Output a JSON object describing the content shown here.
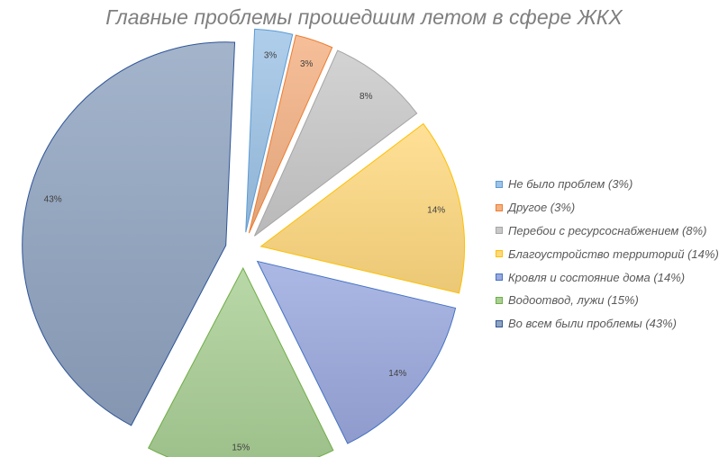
{
  "chart_data": {
    "type": "pie",
    "title": "Главные проблемы прошедшим летом в сфере ЖКХ",
    "legend_position": "right",
    "slices": [
      {
        "name": "Не было проблем",
        "value": 3,
        "label": "3%",
        "legend": "Не было проблем (3%)",
        "color": "#9dc3e6",
        "stroke": "#5b9bd5"
      },
      {
        "name": "Другое",
        "value": 3,
        "label": "3%",
        "legend": "Другое (3%)",
        "color": "#f4b183",
        "stroke": "#ed7d31"
      },
      {
        "name": "Перебои с ресурсоснабжением",
        "value": 8,
        "label": "8%",
        "legend": "Перебои с ресурсоснабжением (8%)",
        "color": "#c9c9c9",
        "stroke": "#a5a5a5"
      },
      {
        "name": "Благоустройство территорий",
        "value": 14,
        "label": "14%",
        "legend": "Благоустройство территорий (14%)",
        "color": "#ffd97f",
        "stroke": "#ffc000"
      },
      {
        "name": "Кровля и состояние дома",
        "value": 14,
        "label": "14%",
        "legend": "Кровля и состояние дома (14%)",
        "color": "#9aa9de",
        "stroke": "#4472c4"
      },
      {
        "name": "Водоотвод, лужи",
        "value": 15,
        "label": "15%",
        "legend": "Водоотвод, лужи (15%)",
        "color": "#aad095",
        "stroke": "#70ad47"
      },
      {
        "name": "Во всем были проблемы",
        "value": 43,
        "label": "43%",
        "legend": "Во всем были проблемы (43%)",
        "color": "#8fa3c0",
        "stroke": "#2f5597"
      }
    ]
  }
}
